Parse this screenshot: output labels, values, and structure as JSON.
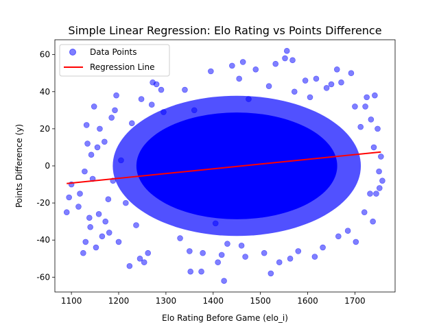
{
  "chart_data": {
    "type": "scatter",
    "title": "Simple Linear Regression: Elo Rating vs Points Difference",
    "xlabel": "Elo Rating Before Game (elo_i)",
    "ylabel": "Points Difference (y)",
    "xlim": [
      1065,
      1785
    ],
    "ylim": [
      -68,
      68
    ],
    "xticks": [
      1100,
      1200,
      1300,
      1400,
      1500,
      1600,
      1700
    ],
    "yticks": [
      -60,
      -40,
      -20,
      0,
      20,
      40,
      60
    ],
    "grid": false,
    "legend": {
      "placement": "top-left",
      "entries": [
        {
          "label": "Data Points",
          "marker": "circle",
          "color": "#0000ff",
          "alpha": 0.5
        },
        {
          "label": "Regression Line",
          "marker": "line",
          "color": "#ff0000"
        }
      ]
    },
    "series": [
      {
        "name": "Data Points",
        "kind": "scatter",
        "color": "#0000ff",
        "points": [
          [
            1090,
            -25
          ],
          [
            1095,
            -17
          ],
          [
            1100,
            -10
          ],
          [
            1115,
            -22
          ],
          [
            1118,
            -15
          ],
          [
            1125,
            -47
          ],
          [
            1128,
            -3
          ],
          [
            1130,
            -41
          ],
          [
            1132,
            22
          ],
          [
            1134,
            12
          ],
          [
            1138,
            -28
          ],
          [
            1140,
            -33
          ],
          [
            1142,
            6
          ],
          [
            1145,
            -7
          ],
          [
            1148,
            32
          ],
          [
            1152,
            -44
          ],
          [
            1155,
            10
          ],
          [
            1158,
            -26
          ],
          [
            1160,
            20
          ],
          [
            1165,
            -38
          ],
          [
            1170,
            13
          ],
          [
            1172,
            -30
          ],
          [
            1178,
            -18
          ],
          [
            1180,
            -36
          ],
          [
            1185,
            26
          ],
          [
            1188,
            -8
          ],
          [
            1192,
            30
          ],
          [
            1195,
            38
          ],
          [
            1200,
            -41
          ],
          [
            1205,
            3
          ],
          [
            1215,
            -20
          ],
          [
            1223,
            -54
          ],
          [
            1228,
            23
          ],
          [
            1237,
            -32
          ],
          [
            1245,
            -50
          ],
          [
            1248,
            36
          ],
          [
            1254,
            -52
          ],
          [
            1262,
            -47
          ],
          [
            1270,
            33
          ],
          [
            1272,
            45
          ],
          [
            1280,
            44
          ],
          [
            1290,
            41
          ],
          [
            1295,
            29
          ],
          [
            1330,
            -39
          ],
          [
            1340,
            41
          ],
          [
            1350,
            -46
          ],
          [
            1352,
            -57
          ],
          [
            1360,
            30
          ],
          [
            1375,
            -57
          ],
          [
            1378,
            -47
          ],
          [
            1395,
            51
          ],
          [
            1405,
            -31
          ],
          [
            1410,
            -52
          ],
          [
            1418,
            -48
          ],
          [
            1423,
            -62
          ],
          [
            1430,
            -42
          ],
          [
            1440,
            54
          ],
          [
            1455,
            47
          ],
          [
            1460,
            -43
          ],
          [
            1463,
            56
          ],
          [
            1468,
            -49
          ],
          [
            1475,
            36
          ],
          [
            1490,
            52
          ],
          [
            1508,
            -47
          ],
          [
            1518,
            43
          ],
          [
            1522,
            -58
          ],
          [
            1532,
            55
          ],
          [
            1540,
            -52
          ],
          [
            1552,
            58
          ],
          [
            1556,
            62
          ],
          [
            1563,
            -50
          ],
          [
            1568,
            57
          ],
          [
            1572,
            40
          ],
          [
            1580,
            -46
          ],
          [
            1595,
            46
          ],
          [
            1605,
            37
          ],
          [
            1615,
            -49
          ],
          [
            1618,
            47
          ],
          [
            1632,
            -44
          ],
          [
            1640,
            42
          ],
          [
            1650,
            44
          ],
          [
            1662,
            52
          ],
          [
            1665,
            -38
          ],
          [
            1671,
            45
          ],
          [
            1685,
            -35
          ],
          [
            1692,
            50
          ],
          [
            1700,
            32
          ],
          [
            1702,
            -41
          ],
          [
            1712,
            21
          ],
          [
            1720,
            -25
          ],
          [
            1722,
            32
          ],
          [
            1725,
            37
          ],
          [
            1732,
            -15
          ],
          [
            1734,
            25
          ],
          [
            1738,
            -30
          ],
          [
            1740,
            10
          ],
          [
            1742,
            38
          ],
          [
            1745,
            -15
          ],
          [
            1748,
            20
          ],
          [
            1751,
            -3
          ],
          [
            1752,
            -12
          ],
          [
            1755,
            5
          ],
          [
            1758,
            -8
          ]
        ]
      },
      {
        "name": "Regression Line",
        "kind": "line",
        "color": "#ff0000",
        "points": [
          [
            1090,
            -9.5
          ],
          [
            1755,
            7.5
          ]
        ]
      }
    ]
  }
}
